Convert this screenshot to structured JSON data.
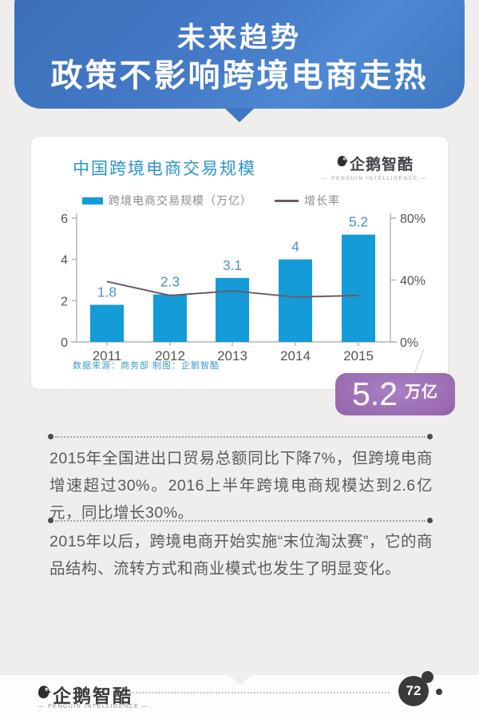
{
  "header": {
    "line1": "未来趋势",
    "line2": "政策不影响跨境电商走热"
  },
  "chart_card": {
    "title": "中国跨境电商交易规模",
    "brand": {
      "name": "企鹅智酷",
      "caption": "— PENGUIN INTELLIGENCE —"
    },
    "legend": [
      {
        "label": "跨境电商交易规模（万亿）",
        "type": "bar"
      },
      {
        "label": "增长率",
        "type": "line"
      }
    ],
    "source_note": "数据来源：商务部 制图：企鹅智酷",
    "callout": {
      "value": "5.2",
      "unit": "万亿"
    }
  },
  "chart_data": {
    "type": "bar",
    "title": "中国跨境电商交易规模",
    "categories": [
      "2011",
      "2012",
      "2013",
      "2014",
      "2015"
    ],
    "series": [
      {
        "name": "跨境电商交易规模（万亿）",
        "type": "bar",
        "axis": "left",
        "color": "#149bd8",
        "values": [
          1.8,
          2.3,
          3.1,
          4,
          5.2
        ]
      },
      {
        "name": "增长率",
        "type": "line",
        "axis": "right",
        "color": "#6d5a66",
        "values_percent": [
          39,
          30,
          33,
          29,
          30
        ]
      }
    ],
    "bar_labels": [
      "1.8",
      "2.3",
      "3.1",
      "4",
      "5.2"
    ],
    "left_axis": {
      "ticks": [
        0,
        2,
        4,
        6
      ],
      "max": 6
    },
    "right_axis": {
      "ticks": [
        "0%",
        "40%",
        "80%"
      ],
      "max_percent": 80
    },
    "grid": false,
    "legend_position": "top"
  },
  "paragraphs": [
    "2015年全国进出口贸易总额同比下降7%，但跨境电商增速超过30%。2016上半年跨境电商规模达到2.6亿元，同比增长30%。",
    "2015年以后，跨境电商开始实施“末位淘汰赛”，它的商品结构、流转方式和商业模式也发生了明显变化。"
  ],
  "footer": {
    "brand": "企鹅智酷",
    "caption": "— PENGUIN INTELLIGENCE —",
    "page_number": "72"
  },
  "colors": {
    "header_blue": "#4479c6",
    "bar_blue": "#149bd8",
    "growth_line": "#6d5a66",
    "badge_purple": "#9a6bb0",
    "title_blue": "#2c95c6",
    "source_blue": "#3e9cc9",
    "page_bg": "#efeeec",
    "text_gray": "#5a5a5a",
    "footer_dark": "#3a3a3c"
  }
}
